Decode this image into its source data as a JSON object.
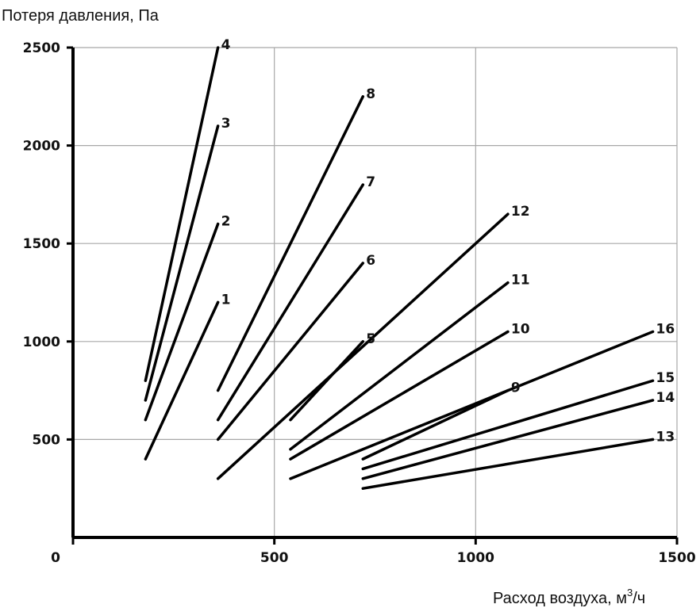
{
  "chart_data": {
    "type": "line",
    "ylabel": "Потеря давления, Па",
    "xlabel_main": "Расход воздуха, м",
    "xlabel_sup": "3",
    "xlabel_tail": "/ч",
    "xlim": [
      0,
      1500
    ],
    "ylim": [
      0,
      2500
    ],
    "x_ticks": [
      0,
      500,
      1000,
      1500
    ],
    "x_tick_labels": [
      "0",
      "500",
      "1000",
      "1500"
    ],
    "y_ticks": [
      500,
      1000,
      1500,
      2000,
      2500
    ],
    "y_tick_labels": [
      "500",
      "1000",
      "1500",
      "2000",
      "2500"
    ],
    "grid": true,
    "series": [
      {
        "name": "1",
        "x": [
          180,
          360
        ],
        "y": [
          400,
          1200
        ]
      },
      {
        "name": "2",
        "x": [
          180,
          360
        ],
        "y": [
          600,
          1600
        ]
      },
      {
        "name": "3",
        "x": [
          180,
          360
        ],
        "y": [
          700,
          2100
        ]
      },
      {
        "name": "4",
        "x": [
          180,
          360
        ],
        "y": [
          800,
          2500
        ]
      },
      {
        "name": "5",
        "x": [
          540,
          720
        ],
        "y": [
          600,
          1000
        ]
      },
      {
        "name": "6",
        "x": [
          360,
          720
        ],
        "y": [
          500,
          1400
        ]
      },
      {
        "name": "7",
        "x": [
          360,
          720
        ],
        "y": [
          600,
          1800
        ]
      },
      {
        "name": "8",
        "x": [
          360,
          720
        ],
        "y": [
          750,
          2250
        ]
      },
      {
        "name": "9",
        "x": [
          720,
          1080
        ],
        "y": [
          400,
          750
        ]
      },
      {
        "name": "10",
        "x": [
          540,
          1080
        ],
        "y": [
          400,
          1050
        ]
      },
      {
        "name": "11",
        "x": [
          540,
          1080
        ],
        "y": [
          450,
          1300
        ]
      },
      {
        "name": "12",
        "x": [
          360,
          1080
        ],
        "y": [
          300,
          1650
        ]
      },
      {
        "name": "13",
        "x": [
          720,
          1440
        ],
        "y": [
          250,
          500
        ]
      },
      {
        "name": "14",
        "x": [
          720,
          1440
        ],
        "y": [
          300,
          700
        ]
      },
      {
        "name": "15",
        "x": [
          720,
          1440
        ],
        "y": [
          350,
          800
        ]
      },
      {
        "name": "16",
        "x": [
          540,
          1440
        ],
        "y": [
          300,
          1050
        ]
      }
    ]
  }
}
